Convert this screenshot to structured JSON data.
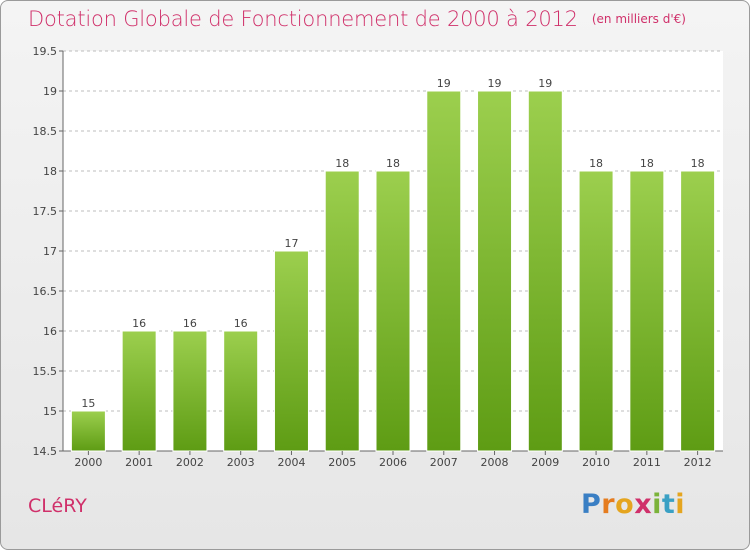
{
  "header": {
    "title": "Dotation Globale de Fonctionnement de 2000 à 2012",
    "unit": "(en milliers d'€)"
  },
  "footer": {
    "commune": "CLéRY",
    "logo_letters": [
      "P",
      "r",
      "o",
      "x",
      "i",
      "t",
      "i"
    ],
    "logo_colors": [
      "#3a7fc4",
      "#e57c1f",
      "#e5a51f",
      "#d0306a",
      "#7bb33a",
      "#3aa0c4",
      "#e5a51f"
    ]
  },
  "colors": {
    "bar_top": "#9ccf4e",
    "bar_bottom": "#5e9c14",
    "title": "#d0306a",
    "grid": "#bdbdbd"
  },
  "chart_data": {
    "type": "bar",
    "categories": [
      "2000",
      "2001",
      "2002",
      "2003",
      "2004",
      "2005",
      "2006",
      "2007",
      "2008",
      "2009",
      "2010",
      "2011",
      "2012"
    ],
    "values": [
      15,
      16,
      16,
      16,
      17,
      18,
      18,
      19,
      19,
      19,
      18,
      18,
      18
    ],
    "data_labels": [
      "15",
      "16",
      "16",
      "16",
      "17",
      "18",
      "18",
      "19",
      "19",
      "19",
      "18",
      "18",
      "18"
    ],
    "title": "Dotation Globale de Fonctionnement de 2000 à 2012",
    "subtitle": "(en milliers d'€)",
    "xlabel": "",
    "ylabel": "",
    "ylim": [
      14.5,
      19.5
    ],
    "yticks": [
      14.5,
      15,
      15.5,
      16,
      16.5,
      17,
      17.5,
      18,
      18.5,
      19,
      19.5
    ],
    "ytick_labels": [
      "14.5",
      "15",
      "15.5",
      "16",
      "16.5",
      "17",
      "17.5",
      "18",
      "18.5",
      "19",
      "19.5"
    ],
    "grid": true,
    "legend": "none"
  }
}
